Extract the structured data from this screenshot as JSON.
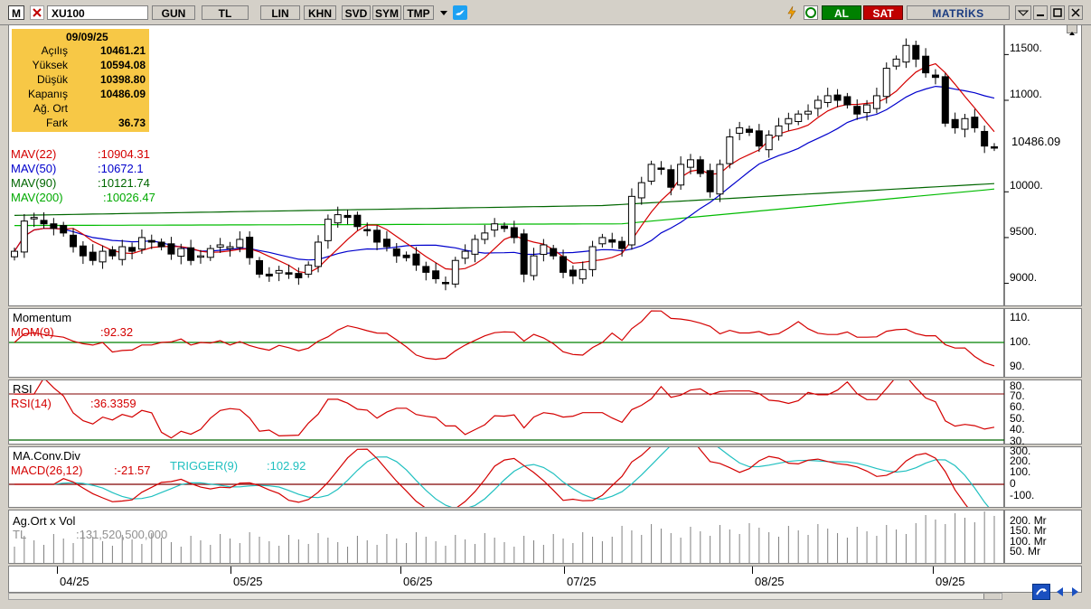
{
  "toolbar": {
    "logo": "M",
    "symbol": "XU100",
    "buttons": [
      "GUN",
      "TL",
      "LIN",
      "KHN",
      "SVD",
      "SYM",
      "TMP"
    ],
    "buy_label": "AL",
    "sell_label": "SAT",
    "brand": "MATRİKS"
  },
  "info_box": {
    "date": "09/09/25",
    "rows": [
      {
        "label": "Açılış",
        "value": "10461.21"
      },
      {
        "label": "Yüksek",
        "value": "10594.08"
      },
      {
        "label": "Düşük",
        "value": "10398.80"
      },
      {
        "label": "Kapanış",
        "value": "10486.09"
      },
      {
        "label": "Ağ. Ort",
        "value": ""
      },
      {
        "label": "Fark",
        "value": "36.73"
      }
    ]
  },
  "price_panel": {
    "legend": [
      {
        "name": "MAV(22)",
        "value": ":10904.31",
        "color": "#d40000"
      },
      {
        "name": "MAV(50)",
        "value": ":10672.1",
        "color": "#0000cc"
      },
      {
        "name": "MAV(90)",
        "value": ":10121.74",
        "color": "#006600"
      },
      {
        "name": "MAV(200)",
        "value": ":10026.47",
        "color": "#00aa00"
      }
    ],
    "y_ticks": [
      "11500.",
      "11000.",
      "10000.",
      "9500.",
      "9000."
    ],
    "last_price": "10486.09"
  },
  "momentum_panel": {
    "title": "Momentum",
    "label": "MOM(9)",
    "value": ":92.32",
    "y_ticks": [
      "110.",
      "100.",
      "90."
    ]
  },
  "rsi_panel": {
    "title": "RSI",
    "label": "RSI(14)",
    "value": ":36.3359",
    "y_ticks": [
      "80.",
      "70.",
      "60.",
      "50.",
      "40.",
      "30."
    ]
  },
  "macd_panel": {
    "title": "MA.Conv.Div",
    "label": "MACD(26,12)",
    "value": ":-21.57",
    "trigger_label": "TRIGGER(9)",
    "trigger_value": ":102.92",
    "y_ticks": [
      "300.",
      "200.",
      "100.",
      "0",
      "-100."
    ]
  },
  "volume_panel": {
    "title": "Ag.Ort x Vol",
    "unit": "TL",
    "value": ":131,520,500,000",
    "y_ticks": [
      "200. Mr",
      "150. Mr",
      "100. Mr",
      "50. Mr"
    ]
  },
  "x_axis": {
    "months": [
      "04/25",
      "05/25",
      "06/25",
      "07/25",
      "08/25",
      "09/25"
    ]
  },
  "chart_data": {
    "type": "candlestick",
    "symbol": "XU100",
    "x_range": [
      "04/25",
      "09/25"
    ],
    "ylim": [
      8800,
      11800
    ],
    "closes": [
      9350,
      9680,
      9720,
      9650,
      9600,
      9550,
      9400,
      9300,
      9250,
      9350,
      9300,
      9400,
      9350,
      9500,
      9450,
      9400,
      9320,
      9380,
      9250,
      9300,
      9380,
      9420,
      9400,
      9480,
      9280,
      9100,
      9080,
      9140,
      9100,
      9060,
      9200,
      9450,
      9700,
      9750,
      9720,
      9620,
      9580,
      9450,
      9400,
      9300,
      9280,
      9200,
      9120,
      9050,
      9000,
      9250,
      9350,
      9480,
      9550,
      9650,
      9600,
      9500,
      9100,
      9300,
      9420,
      9300,
      9120,
      9080,
      9150,
      9400,
      9500,
      9450,
      9380,
      9950,
      10100,
      10300,
      10250,
      10050,
      10300,
      10350,
      10200,
      10000,
      10300,
      10600,
      10700,
      10650,
      10500,
      10620,
      10720,
      10800,
      10850,
      10880,
      11000,
      11050,
      11000,
      10950,
      10850,
      10950,
      11050,
      11350,
      11450,
      11600,
      11450,
      11300,
      11250,
      10750,
      10700,
      10800,
      10700,
      10500,
      10486
    ]
  }
}
